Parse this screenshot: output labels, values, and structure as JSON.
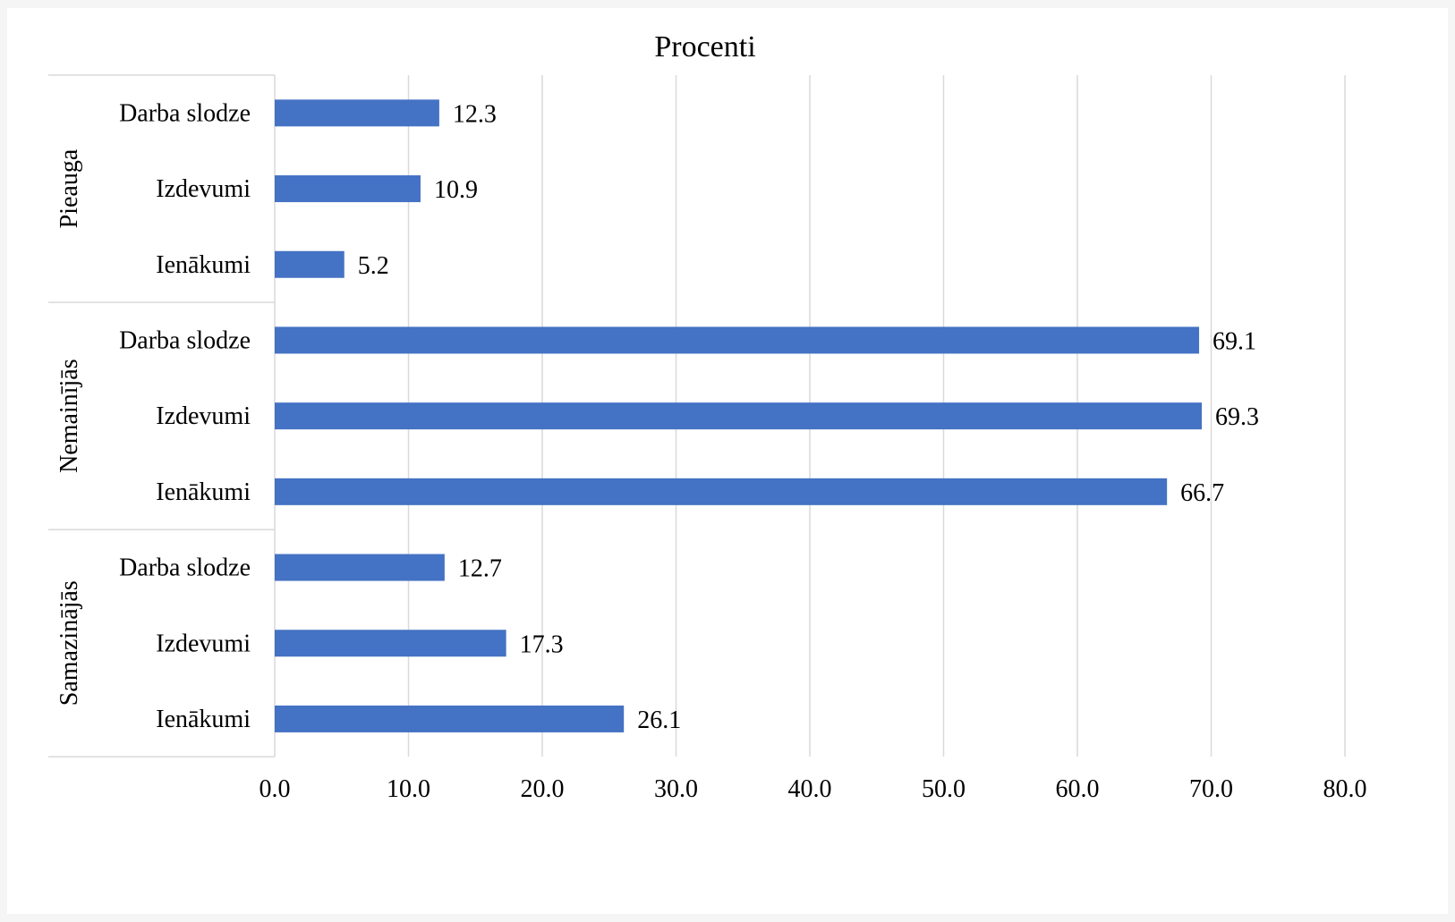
{
  "chart_data": {
    "type": "bar",
    "orientation": "horizontal",
    "title": "Procenti",
    "xlabel": "",
    "ylabel": "",
    "xlim": [
      0,
      80
    ],
    "ticks": [
      "0.0",
      "10.0",
      "20.0",
      "30.0",
      "40.0",
      "50.0",
      "60.0",
      "70.0",
      "80.0"
    ],
    "tick_values": [
      0,
      10,
      20,
      30,
      40,
      50,
      60,
      70,
      80
    ],
    "grid": true,
    "bar_color": "#4472C4",
    "groups": [
      {
        "name": "Pieauga",
        "categories": [
          "Darba slodze",
          "Izdevumi",
          "Ienākumi"
        ],
        "values": [
          12.3,
          10.9,
          5.2
        ],
        "labels": [
          "12.3",
          "10.9",
          "5.2"
        ]
      },
      {
        "name": "Nemainījās",
        "categories": [
          "Darba slodze",
          "Izdevumi",
          "Ienākumi"
        ],
        "values": [
          69.1,
          69.3,
          66.7
        ],
        "labels": [
          "69.1",
          "69.3",
          "66.7"
        ]
      },
      {
        "name": "Samazinājās",
        "categories": [
          "Darba slodze",
          "Izdevumi",
          "Ienākumi"
        ],
        "values": [
          12.7,
          17.3,
          26.1
        ],
        "labels": [
          "12.7",
          "17.3",
          "26.1"
        ]
      }
    ]
  }
}
